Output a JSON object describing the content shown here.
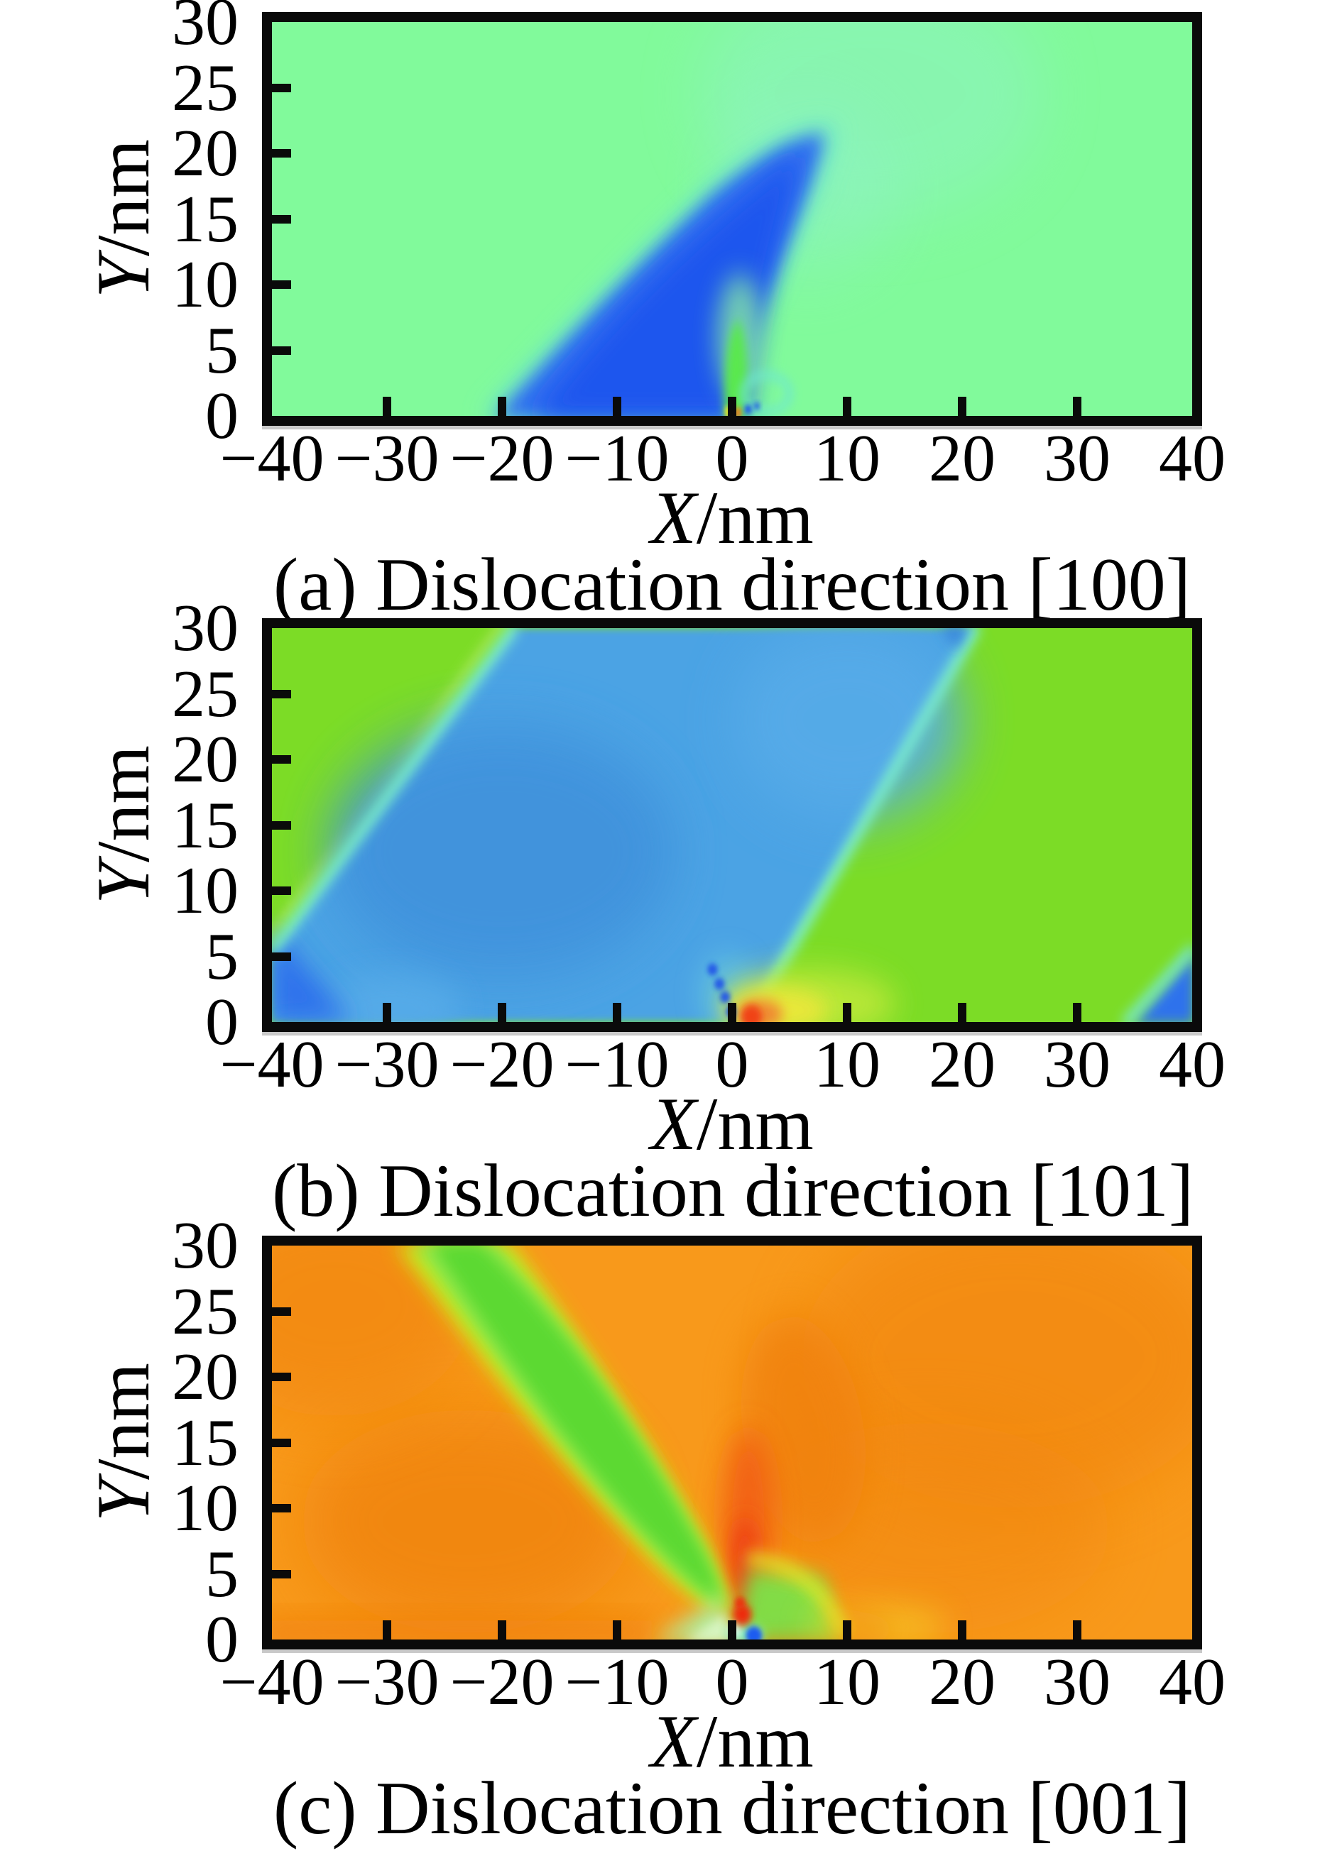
{
  "figure": {
    "panels": [
      {
        "caption": "(a) Dislocation direction [100]",
        "xlabel_var": "X",
        "xlabel_unit": "/nm",
        "ylabel_var": "Y",
        "ylabel_unit": "/nm",
        "x_tick_values": [
          -40,
          -30,
          -20,
          -10,
          0,
          10,
          20,
          30,
          40
        ],
        "x_tick_labels": [
          "−40",
          "−30",
          "−20",
          "−10",
          "0",
          "10",
          "20",
          "30",
          "40"
        ],
        "y_tick_values": [
          0,
          5,
          10,
          15,
          20,
          25,
          30
        ],
        "y_tick_labels": [
          "0",
          "5",
          "10",
          "15",
          "20",
          "25",
          "30"
        ]
      },
      {
        "caption": "(b) Dislocation direction [101]",
        "xlabel_var": "X",
        "xlabel_unit": "/nm",
        "ylabel_var": "Y",
        "ylabel_unit": "/nm",
        "x_tick_values": [
          -40,
          -30,
          -20,
          -10,
          0,
          10,
          20,
          30,
          40
        ],
        "x_tick_labels": [
          "−40",
          "−30",
          "−20",
          "−10",
          "0",
          "10",
          "20",
          "30",
          "40"
        ],
        "y_tick_values": [
          0,
          5,
          10,
          15,
          20,
          25,
          30
        ],
        "y_tick_labels": [
          "0",
          "5",
          "10",
          "15",
          "20",
          "25",
          "30"
        ]
      },
      {
        "caption": "(c) Dislocation direction [001]",
        "xlabel_var": "X",
        "xlabel_unit": "/nm",
        "ylabel_var": "Y",
        "ylabel_unit": "/nm",
        "x_tick_values": [
          -40,
          -30,
          -20,
          -10,
          0,
          10,
          20,
          30,
          40
        ],
        "x_tick_labels": [
          "−40",
          "−30",
          "−20",
          "−10",
          "0",
          "10",
          "20",
          "30",
          "40"
        ],
        "y_tick_values": [
          0,
          5,
          10,
          15,
          20,
          25,
          30
        ],
        "y_tick_labels": [
          "0",
          "5",
          "10",
          "15",
          "20",
          "25",
          "30"
        ]
      }
    ]
  },
  "chart_data": [
    {
      "type": "heatmap",
      "title": "(a) Dislocation direction [100]",
      "xlabel": "X/nm",
      "ylabel": "Y/nm",
      "x_range": [
        -40,
        40
      ],
      "y_range": [
        0,
        30
      ],
      "x_ticks": [
        -40,
        -30,
        -20,
        -10,
        0,
        10,
        20,
        30,
        40
      ],
      "y_ticks": [
        0,
        5,
        10,
        15,
        20,
        25,
        30
      ],
      "grid": false,
      "legend": false,
      "background_color": "#81fa9b",
      "features": [
        "uniform light-green field (#81fa9b) over most of the domain",
        "blue comet-shaped lobe (#3070f0, dark core #1e55ee) rising from base x=-21..0 at y=0 to a tip near (8,21)",
        "cyan fringe (#6fe9cc) outlining the blue lobe",
        "pale mint plume (#8ff2c4) curling up-right from the lobe tip toward (12,27)",
        "narrow yellow-green plume (#5ae84e) at origin x≈0, y=0..7",
        "tiny yellow (#f0e822) and orange (#f07c20) dots at (0,0.5) with dark-blue specks (#2256e8) just right of origin",
        "small cyan swirl ring near (3,1.5)"
      ]
    },
    {
      "type": "heatmap",
      "title": "(b) Dislocation direction [101]",
      "xlabel": "X/nm",
      "ylabel": "Y/nm",
      "x_range": [
        -40,
        40
      ],
      "y_range": [
        0,
        30
      ],
      "x_ticks": [
        -40,
        -30,
        -20,
        -10,
        0,
        10,
        20,
        30,
        40
      ],
      "y_ticks": [
        0,
        5,
        10,
        15,
        20,
        25,
        30
      ],
      "grid": false,
      "legend": false,
      "background_color": "#7cdc26",
      "features": [
        "bright yellow-green field (#7cdc26) in upper-left triangle and entire right side",
        "wide diagonal blue band (#4ba3e4) from (-40,0..5) up to (-19..21,30); left edge (-40,5.3)->(-19,30), right edge (1,0)->(21,30)",
        "aqua-cyan boundary lines (#7df0cc) along both band edges",
        "darker blue patch (#3f92dc) inside band near (-20,12) and deep blue corner (#2e72ec) at (-40,0..6)",
        "red spot (#f04314) at (1,0.5) with orange halo (#f08030) and yellow fan (#ece73a) fading right into green",
        "dark-blue specks (#2257e8) in a short diagonal from (0,0.7) to (-2,3.5)",
        "blue wedge with cyan edge at bottom-right corner from (34,0) to (40,5.5)",
        "small darker blue dash at top edge near x=19"
      ]
    },
    {
      "type": "heatmap",
      "title": "(c) Dislocation direction [001]",
      "xlabel": "X/nm",
      "ylabel": "Y/nm",
      "x_range": [
        -40,
        40
      ],
      "y_range": [
        0,
        30
      ],
      "x_ticks": [
        -40,
        -30,
        -20,
        -10,
        0,
        10,
        20,
        30,
        40
      ],
      "y_ticks": [
        0,
        5,
        10,
        15,
        20,
        25,
        30
      ],
      "grid": false,
      "legend": false,
      "background_color": "#f8991b",
      "features": [
        "orange field (#f8991b) with softly darker orange lobes (#f08310) left-mid, top-left, top-right and right-mid",
        "curved green band (core #5cd930, mid #8fe84a, yellow fringe #c9ec1c) from top edge x=-28..-21 sweeping down-right and tapering to the origin near (0,2)",
        "red-orange column (#f25a16, core #ee4112) above origin around x=0..2, y=4..15",
        "bright red blob (#ee2c10) at (0.6,2) and blue dot (#1f5cf0) at (1.3,0.5) on the axis",
        "light-green fan (#abefa0) left of origin x=-8..0, y=0..4 with whitish streak near (-0.5,1)",
        "bright green fan (#7ce148) right of origin to (9,5) bounded by a yellow rim arc (#e9ee28)",
        "cyan streak (#7df0d0) hugging the axis just right of origin",
        "deep orange strip (#f2720e) along the bottom right of the fan"
      ]
    }
  ],
  "palette": {
    "frame": "#0a0a0a",
    "a": {
      "bg": "#81fa9b",
      "mint": "#8ff2c4",
      "cyan_fringe": "#6fe9cc",
      "blue": "#3070f0",
      "blue_dark": "#1e55ee",
      "green_plume": "#5ae84e",
      "green_plume_light": "#8df3a0",
      "dot_yellow": "#f0e822",
      "dot_orange": "#f07c20",
      "speck_blue": "#2256e8"
    },
    "b": {
      "green": "#7cdc26",
      "blue": "#4ba3e4",
      "blue_dark1": "#3f92dc",
      "blue_light": "#57abe8",
      "blue_deep": "#2e72ec",
      "blue_dash": "#3a88dc",
      "cyan": "#7df0cc",
      "fringe": "#cdf07a",
      "cyan_soft": "#6ccfe0",
      "blend": "#c2e93a",
      "yellow": "#ece73a",
      "orange": "#f08030",
      "red": "#f04314",
      "speck": "#2257e8"
    },
    "c": {
      "bg": "#f8991b",
      "dark": "#f08310",
      "dark2": "#f0800e",
      "deep": "#f2720e",
      "column": "#f25a16",
      "column2": "#ee4112",
      "band_fringe": "#c9ec1c",
      "band_mid": "#8fe84a",
      "band_core": "#5cd930",
      "fan_left": "#abefa0",
      "fan_left2": "#d9f8c8",
      "fan_right": "#7ce148",
      "rim": "#e9ee28",
      "glow": "#f5da28",
      "cyan": "#7df0d0",
      "white": "#eafff2",
      "red": "#ee2c10",
      "blue": "#1f5cf0"
    }
  }
}
